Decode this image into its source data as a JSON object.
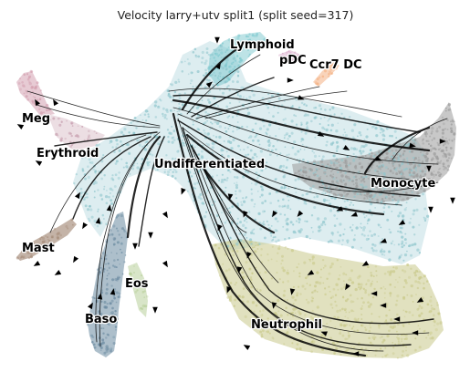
{
  "chart_data": {
    "type": "scatter",
    "title": "Velocity larry+utv split1 (split seed=317)",
    "xlabel": "",
    "ylabel": "",
    "grid": false,
    "legend": "on data",
    "clusters": [
      {
        "name": "Lymphoid",
        "color": "#7bc8ce",
        "label": "Lymphoid"
      },
      {
        "name": "pDC",
        "color": "#d8a7c8",
        "label": "pDC"
      },
      {
        "name": "Ccr7 DC",
        "color": "#f4b183",
        "label": "Ccr7 DC"
      },
      {
        "name": "Meg",
        "color": "#d4a0b0",
        "label": "Meg"
      },
      {
        "name": "Erythroid",
        "color": "#c8a0b0",
        "label": "Erythroid"
      },
      {
        "name": "Undifferentiated",
        "color": "#8ec5cc",
        "label": "Undifferentiated"
      },
      {
        "name": "Monocyte",
        "color": "#9a9a9a",
        "label": "Monocyte"
      },
      {
        "name": "Mast",
        "color": "#a58b78",
        "label": "Mast"
      },
      {
        "name": "Eos",
        "color": "#b8cf9a",
        "label": "Eos"
      },
      {
        "name": "Baso",
        "color": "#6a8aa0",
        "label": "Baso"
      },
      {
        "name": "Neutrophil",
        "color": "#c9c98a",
        "label": "Neutrophil"
      }
    ]
  }
}
